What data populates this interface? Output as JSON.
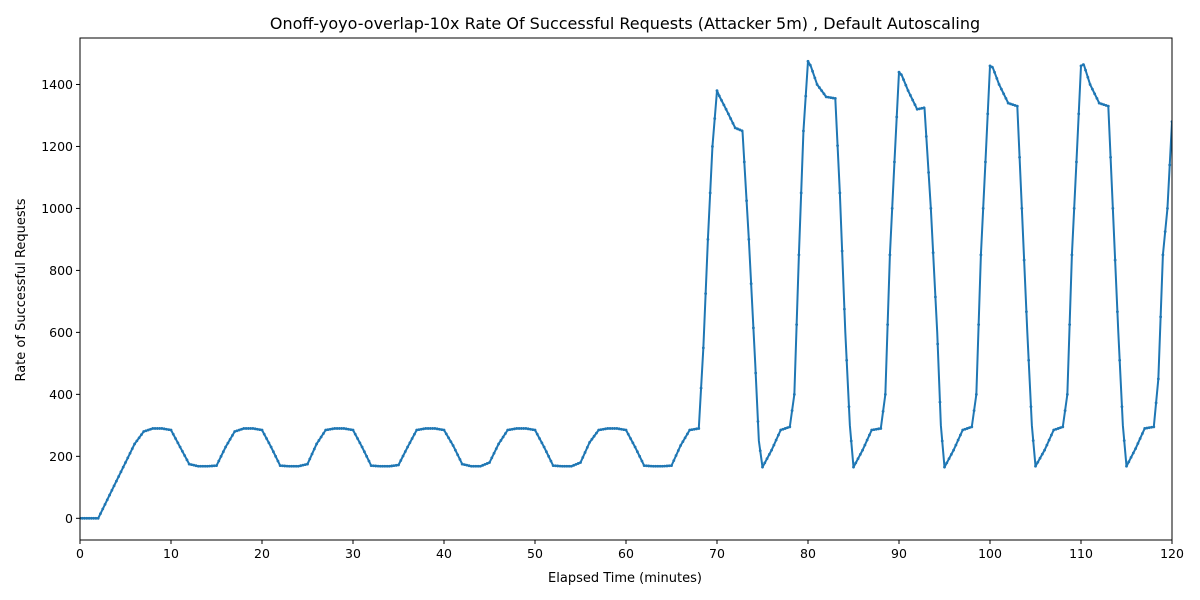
{
  "chart_data": {
    "type": "line",
    "title": "Onoff-yoyo-overlap-10x Rate Of Successful Requests (Attacker 5m) , Default Autoscaling",
    "xlabel": "Elapsed Time (minutes)",
    "ylabel": "Rate of Successful Requests",
    "xlim": [
      0,
      120
    ],
    "ylim": [
      -70,
      1550
    ],
    "xticks": [
      0,
      10,
      20,
      30,
      40,
      50,
      60,
      70,
      80,
      90,
      100,
      110,
      120
    ],
    "yticks": [
      0,
      200,
      400,
      600,
      800,
      1000,
      1200,
      1400
    ],
    "grid": false,
    "legend": "none",
    "series": [
      {
        "color": "#1f77b4",
        "x": [
          0,
          2,
          2.5,
          3,
          4,
          5,
          6,
          7,
          8,
          9,
          10,
          11,
          12,
          13,
          14,
          15,
          16,
          17,
          18,
          19,
          20,
          21,
          22,
          23,
          24,
          25,
          26,
          27,
          28,
          29,
          30,
          31,
          32,
          33,
          34,
          35,
          36,
          37,
          38,
          39,
          40,
          41,
          42,
          43,
          44,
          45,
          46,
          47,
          48,
          49,
          50,
          51,
          52,
          53,
          54,
          55,
          56,
          57,
          58,
          59,
          60,
          61,
          62,
          63,
          64,
          65,
          66,
          67,
          68,
          68.5,
          69,
          69.5,
          70,
          70.3,
          71,
          72,
          72.8,
          73.5,
          74.2,
          74.6,
          75,
          76,
          77,
          78,
          78.5,
          79,
          79.5,
          80,
          80.3,
          81,
          82,
          83,
          83.5,
          84.1,
          84.6,
          85,
          86,
          87,
          88,
          88.5,
          89,
          89.5,
          90,
          90.3,
          91,
          92,
          92.8,
          93.5,
          94.2,
          94.6,
          95,
          96,
          97,
          98,
          98.5,
          99,
          99.5,
          100,
          100.3,
          101,
          102,
          103,
          103.5,
          104.1,
          104.6,
          105,
          106,
          107,
          108,
          108.5,
          109,
          109.5,
          110,
          110.3,
          111,
          112,
          113,
          113.5,
          114.1,
          114.6,
          115,
          116,
          117,
          118,
          118.5,
          119,
          119.5,
          120
        ],
        "y": [
          0,
          0,
          30,
          60,
          120,
          180,
          240,
          280,
          290,
          290,
          285,
          230,
          175,
          168,
          168,
          170,
          230,
          280,
          290,
          290,
          285,
          230,
          170,
          168,
          168,
          175,
          240,
          285,
          290,
          290,
          285,
          230,
          170,
          168,
          168,
          172,
          230,
          285,
          290,
          290,
          285,
          235,
          175,
          168,
          168,
          180,
          240,
          285,
          290,
          290,
          285,
          230,
          170,
          168,
          168,
          180,
          245,
          285,
          290,
          290,
          285,
          230,
          170,
          168,
          168,
          170,
          235,
          285,
          290,
          550,
          900,
          1200,
          1380,
          1360,
          1320,
          1260,
          1250,
          900,
          500,
          250,
          165,
          220,
          285,
          295,
          400,
          850,
          1250,
          1475,
          1460,
          1400,
          1360,
          1355,
          1050,
          600,
          300,
          165,
          220,
          285,
          290,
          400,
          850,
          1150,
          1440,
          1430,
          1380,
          1320,
          1325,
          1000,
          600,
          300,
          165,
          220,
          285,
          295,
          400,
          850,
          1150,
          1460,
          1455,
          1400,
          1340,
          1330,
          1000,
          600,
          300,
          168,
          220,
          285,
          295,
          400,
          850,
          1150,
          1460,
          1465,
          1400,
          1340,
          1330,
          1000,
          600,
          300,
          168,
          225,
          290,
          295,
          450,
          850,
          1000,
          1280
        ]
      }
    ]
  }
}
